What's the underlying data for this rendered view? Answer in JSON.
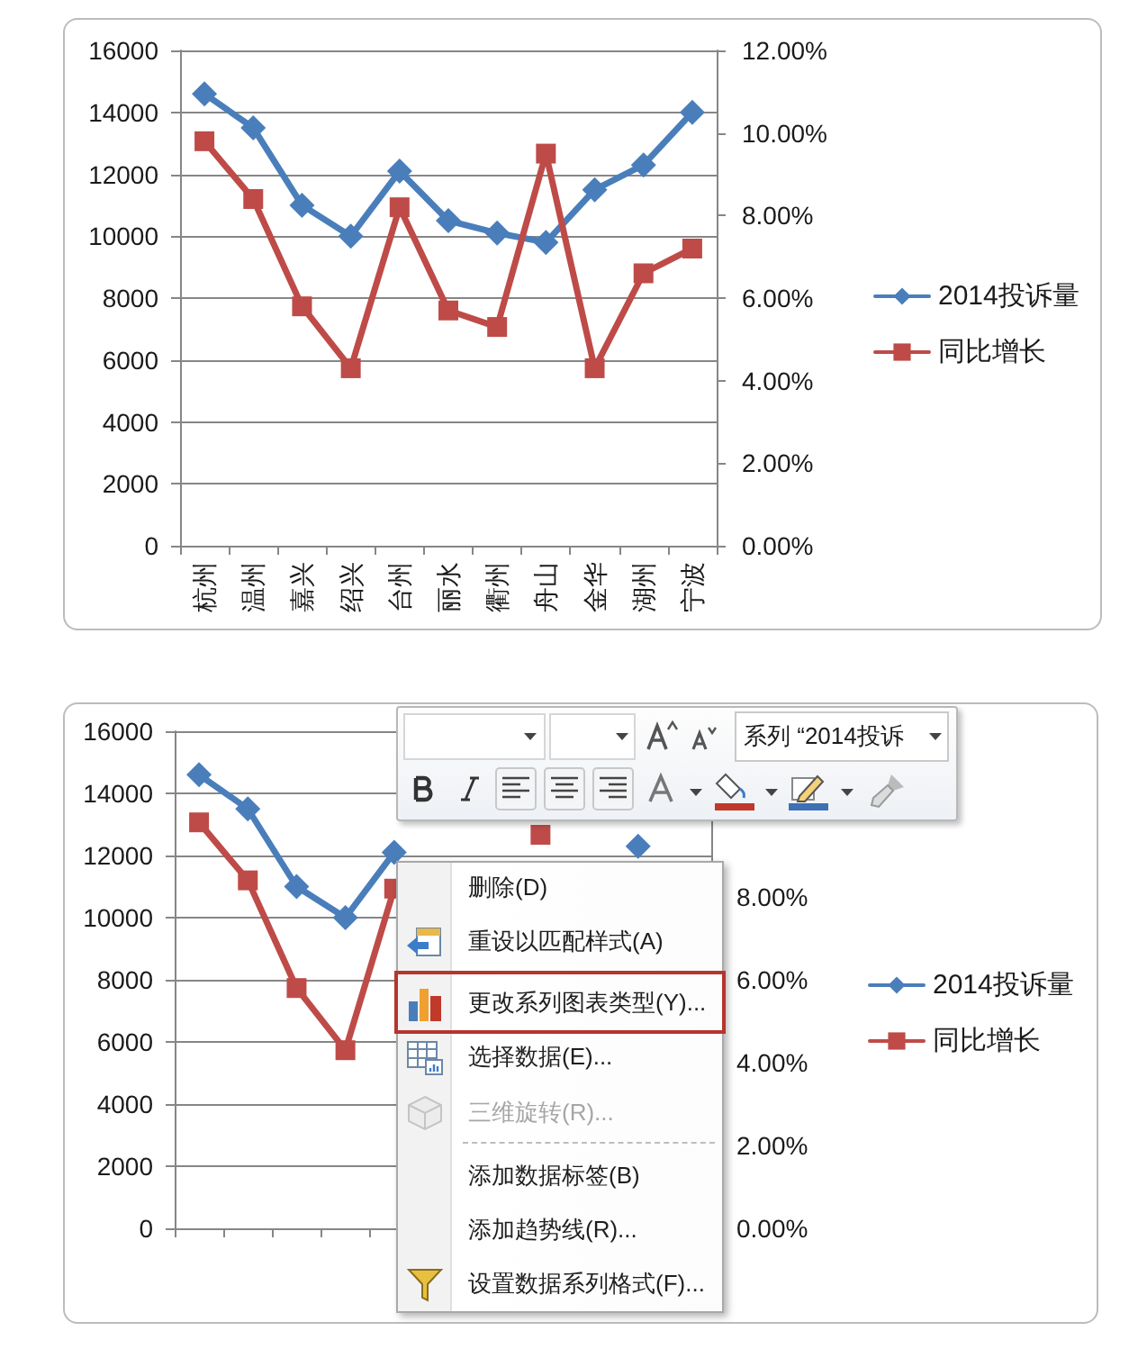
{
  "chart_data": [
    {
      "type": "line",
      "categories": [
        "杭州",
        "温州",
        "嘉兴",
        "绍兴",
        "台州",
        "丽水",
        "衢州",
        "舟山",
        "金华",
        "湖州",
        "宁波"
      ],
      "series": [
        {
          "name": "2014投诉量",
          "color": "#4a7ebb",
          "marker": "diamond",
          "values": [
            14600,
            13500,
            11000,
            10000,
            12100,
            10500,
            10100,
            9800,
            11500,
            12300,
            14000
          ]
        },
        {
          "name": "同比增长",
          "color": "#be4b48",
          "marker": "square",
          "axis": "y2",
          "values": [
            9.8,
            8.4,
            5.8,
            4.3,
            8.2,
            5.7,
            5.3,
            9.5,
            4.3,
            6.6,
            7.2
          ]
        }
      ],
      "ylim": [
        0,
        16000
      ],
      "yticks": [
        0,
        2000,
        4000,
        6000,
        8000,
        10000,
        12000,
        14000,
        16000
      ],
      "y2lim": [
        0,
        12
      ],
      "y2ticks": [
        {
          "value": 0,
          "label": "0.00%"
        },
        {
          "value": 2,
          "label": "2.00%"
        },
        {
          "value": 4,
          "label": "4.00%"
        },
        {
          "value": 6,
          "label": "6.00%"
        },
        {
          "value": 8,
          "label": "8.00%"
        },
        {
          "value": 10,
          "label": "10.00%"
        },
        {
          "value": 12,
          "label": "12.00%"
        }
      ],
      "grid": "y",
      "legend": "right"
    },
    {
      "type": "line",
      "categories": [
        null,
        null,
        null,
        null,
        null,
        null,
        null,
        null,
        null,
        null,
        null
      ],
      "series": [
        {
          "name": "2014投诉量",
          "color": "#4a7ebb",
          "marker": "diamond",
          "values": [
            14600,
            13500,
            11000,
            10000,
            12100,
            null,
            null,
            null,
            null,
            12300,
            null
          ]
        },
        {
          "name": "同比增长",
          "color": "#be4b48",
          "marker": "square",
          "axis": "y2",
          "values": [
            9.8,
            8.4,
            5.8,
            4.3,
            8.2,
            null,
            null,
            9.5,
            null,
            null,
            null
          ]
        }
      ],
      "ylim": [
        0,
        16000
      ],
      "yticks": [
        0,
        2000,
        4000,
        6000,
        8000,
        10000,
        12000,
        14000,
        16000
      ],
      "y2lim": [
        0,
        12
      ],
      "y2ticks": [
        {
          "value": 0,
          "label": "0.00%"
        },
        {
          "value": 2,
          "label": "2.00%"
        },
        {
          "value": 4,
          "label": "4.00%"
        },
        {
          "value": 6,
          "label": "6.00%"
        },
        {
          "value": 8,
          "label": "8.00%"
        }
      ],
      "grid": "y",
      "legend": "right",
      "annotations": [
        "系列 “2014投诉",
        "删除(D)",
        "重设以匹配样式(A)",
        "更改系列图表类型(Y)...",
        "选择数据(E)...",
        "三维旋转(R)...",
        "添加数据标签(B)",
        "添加趋势线(R)...",
        "设置数据系列格式(F)..."
      ]
    }
  ]
}
